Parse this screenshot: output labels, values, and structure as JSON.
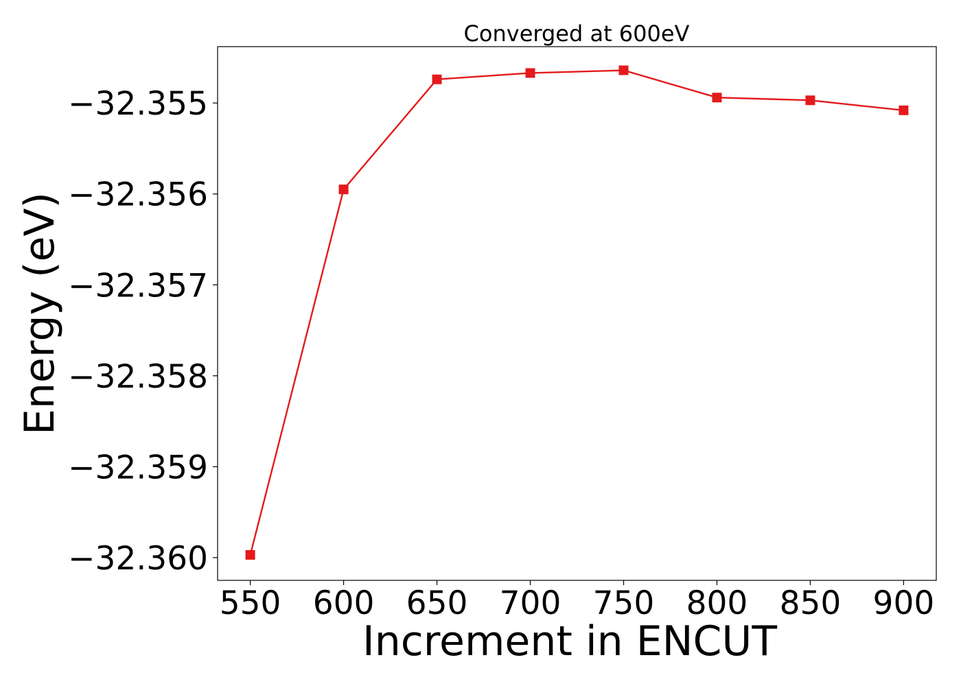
{
  "chart_data": {
    "type": "line",
    "title": "Converged at 600eV",
    "xlabel": "Increment in ENCUT",
    "ylabel": "Energy (eV)",
    "x": [
      550,
      600,
      650,
      700,
      750,
      800,
      850,
      900
    ],
    "series": [
      {
        "values": [
          -32.35997,
          -32.35595,
          -32.35474,
          -32.35467,
          -32.35464,
          -32.35494,
          -32.35497,
          -32.35508
        ],
        "color": "#e41a1c",
        "marker": "square"
      }
    ],
    "xticks": [
      550,
      600,
      650,
      700,
      750,
      800,
      850,
      900
    ],
    "yticks": [
      -32.355,
      -32.356,
      -32.357,
      -32.358,
      -32.359,
      -32.36
    ],
    "ytick_labels": [
      "−32.355",
      "−32.356",
      "−32.357",
      "−32.358",
      "−32.359",
      "−32.360"
    ],
    "xlim": [
      532.5,
      917.5
    ],
    "ylim": [
      -32.36025,
      -32.35438
    ],
    "grid": false,
    "legend": "none"
  }
}
